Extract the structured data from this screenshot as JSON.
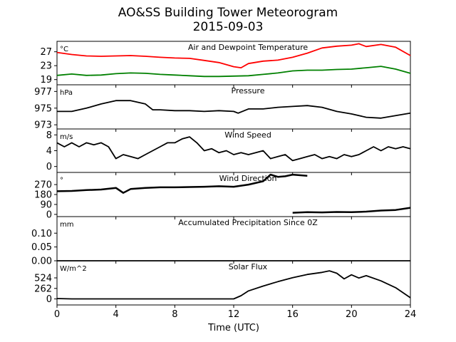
{
  "title_line1": "AO&SS Building Tower Meteorogram",
  "title_line2": "2015-09-03",
  "chart_data": {
    "type": "line",
    "x_label": "Time (UTC)",
    "x_range": [
      0,
      24
    ],
    "x_ticks": [
      0,
      4,
      8,
      12,
      16,
      20,
      24
    ],
    "panels": [
      {
        "title": "Air and Dewpoint Temperature",
        "unit": "°C",
        "ylim": [
          17.5,
          30
        ],
        "yticks": [
          19,
          23,
          27
        ],
        "series": [
          {
            "color": "#ff0000",
            "points": [
              [
                0,
                26.8
              ],
              [
                1,
                26.2
              ],
              [
                2,
                25.8
              ],
              [
                3,
                25.7
              ],
              [
                4,
                25.8
              ],
              [
                5,
                25.9
              ],
              [
                6,
                25.7
              ],
              [
                7,
                25.4
              ],
              [
                8,
                25.2
              ],
              [
                9,
                25.1
              ],
              [
                10,
                24.5
              ],
              [
                11,
                23.9
              ],
              [
                12,
                22.7
              ],
              [
                12.5,
                22.4
              ],
              [
                13,
                23.6
              ],
              [
                14,
                24.3
              ],
              [
                15,
                24.6
              ],
              [
                16,
                25.4
              ],
              [
                17,
                26.6
              ],
              [
                18,
                28.1
              ],
              [
                19,
                28.6
              ],
              [
                20,
                28.9
              ],
              [
                20.5,
                29.3
              ],
              [
                21,
                28.5
              ],
              [
                22,
                29.1
              ],
              [
                23,
                28.3
              ],
              [
                24,
                25.9
              ]
            ]
          },
          {
            "color": "#008000",
            "points": [
              [
                0,
                20.2
              ],
              [
                1,
                20.6
              ],
              [
                2,
                20.2
              ],
              [
                3,
                20.3
              ],
              [
                4,
                20.7
              ],
              [
                5,
                20.9
              ],
              [
                6,
                20.8
              ],
              [
                7,
                20.5
              ],
              [
                8,
                20.3
              ],
              [
                9,
                20.1
              ],
              [
                10,
                19.9
              ],
              [
                11,
                19.9
              ],
              [
                12,
                20.0
              ],
              [
                13,
                20.1
              ],
              [
                14,
                20.5
              ],
              [
                15,
                20.9
              ],
              [
                16,
                21.5
              ],
              [
                17,
                21.7
              ],
              [
                18,
                21.7
              ],
              [
                19,
                21.9
              ],
              [
                20,
                22.0
              ],
              [
                21,
                22.4
              ],
              [
                22,
                22.8
              ],
              [
                23,
                22.0
              ],
              [
                24,
                20.8
              ]
            ]
          }
        ]
      },
      {
        "title": "Pressure",
        "unit": "hPa",
        "ylim": [
          972.5,
          977.8
        ],
        "yticks": [
          973,
          975,
          977
        ],
        "series": [
          {
            "color": "#000000",
            "points": [
              [
                0,
                974.6
              ],
              [
                1,
                974.6
              ],
              [
                2,
                975.0
              ],
              [
                3,
                975.5
              ],
              [
                4,
                975.9
              ],
              [
                5,
                975.9
              ],
              [
                6,
                975.5
              ],
              [
                6.5,
                974.8
              ],
              [
                7,
                974.8
              ],
              [
                8,
                974.7
              ],
              [
                9,
                974.7
              ],
              [
                10,
                974.6
              ],
              [
                11,
                974.7
              ],
              [
                12,
                974.6
              ],
              [
                12.3,
                974.4
              ],
              [
                13,
                974.9
              ],
              [
                14,
                974.9
              ],
              [
                15,
                975.1
              ],
              [
                16,
                975.2
              ],
              [
                17,
                975.3
              ],
              [
                18,
                975.1
              ],
              [
                19,
                974.6
              ],
              [
                20,
                974.3
              ],
              [
                21,
                973.9
              ],
              [
                22,
                973.8
              ],
              [
                23,
                974.1
              ],
              [
                24,
                974.4
              ]
            ]
          }
        ]
      },
      {
        "title": "Wind Speed",
        "unit": "m/s",
        "ylim": [
          -1.5,
          9.5
        ],
        "yticks": [
          0,
          4,
          8
        ],
        "series": [
          {
            "color": "#000000",
            "points": [
              [
                0,
                6
              ],
              [
                0.5,
                5
              ],
              [
                1,
                6
              ],
              [
                1.5,
                5
              ],
              [
                2,
                6
              ],
              [
                2.5,
                5.5
              ],
              [
                3,
                6
              ],
              [
                3.5,
                5
              ],
              [
                4,
                2
              ],
              [
                4.5,
                3
              ],
              [
                5,
                2.5
              ],
              [
                5.5,
                2
              ],
              [
                6,
                3
              ],
              [
                6.5,
                4
              ],
              [
                7,
                5
              ],
              [
                7.5,
                6
              ],
              [
                8,
                6
              ],
              [
                8.5,
                7
              ],
              [
                9,
                7.5
              ],
              [
                9.5,
                6
              ],
              [
                10,
                4
              ],
              [
                10.5,
                4.5
              ],
              [
                11,
                3.5
              ],
              [
                11.5,
                4
              ],
              [
                12,
                3
              ],
              [
                12.5,
                3.5
              ],
              [
                13,
                3
              ],
              [
                13.5,
                3.5
              ],
              [
                14,
                4
              ],
              [
                14.5,
                2
              ],
              [
                15,
                2.5
              ],
              [
                15.5,
                3
              ],
              [
                16,
                1.5
              ],
              [
                16.5,
                2
              ],
              [
                17,
                2.5
              ],
              [
                17.5,
                3
              ],
              [
                18,
                2
              ],
              [
                18.5,
                2.5
              ],
              [
                19,
                2
              ],
              [
                19.5,
                3
              ],
              [
                20,
                2.5
              ],
              [
                20.5,
                3
              ],
              [
                21,
                4
              ],
              [
                21.5,
                5
              ],
              [
                22,
                4
              ],
              [
                22.5,
                5
              ],
              [
                23,
                4.5
              ],
              [
                23.5,
                5
              ],
              [
                24,
                4.5
              ]
            ]
          }
        ]
      },
      {
        "title": "Wind Direction",
        "unit": "°",
        "ylim": [
          -20,
          380
        ],
        "yticks": [
          0,
          90,
          180,
          270
        ],
        "series": [
          {
            "color": "#000000",
            "points": [
              [
                0,
                210
              ],
              [
                1,
                212
              ],
              [
                2,
                220
              ],
              [
                3,
                225
              ],
              [
                4,
                240
              ],
              [
                4.5,
                195
              ],
              [
                5,
                230
              ],
              [
                6,
                240
              ],
              [
                7,
                245
              ],
              [
                8,
                245
              ],
              [
                9,
                248
              ],
              [
                10,
                250
              ],
              [
                11,
                255
              ],
              [
                12,
                250
              ],
              [
                13,
                270
              ],
              [
                14,
                300
              ],
              [
                14.5,
                360
              ],
              [
                15,
                340
              ],
              [
                15.5,
                345
              ],
              [
                16,
                360
              ],
              [
                17,
                350
              ]
            ]
          },
          {
            "color": "#000000",
            "points": [
              [
                16,
                15
              ],
              [
                17,
                20
              ],
              [
                18,
                18
              ],
              [
                19,
                22
              ],
              [
                20,
                20
              ],
              [
                21,
                25
              ],
              [
                22,
                35
              ],
              [
                23,
                40
              ],
              [
                24,
                60
              ]
            ]
          }
        ]
      },
      {
        "title": "Accumulated Precipitation Since 0Z",
        "unit": "mm",
        "ylim": [
          0,
          0.16
        ],
        "yticks": [
          0.0,
          0.05,
          0.1
        ],
        "series": [
          {
            "color": "#000000",
            "points": [
              [
                0,
                0
              ],
              [
                24,
                0
              ]
            ]
          }
        ]
      },
      {
        "title": "Solar Flux",
        "unit": "W/m^2",
        "ylim": [
          -150,
          950
        ],
        "yticks": [
          0,
          262,
          524
        ],
        "series": [
          {
            "color": "#000000",
            "points": [
              [
                0,
                10
              ],
              [
                1,
                0
              ],
              [
                4,
                0
              ],
              [
                8,
                0
              ],
              [
                12,
                0
              ],
              [
                12.5,
                80
              ],
              [
                13,
                200
              ],
              [
                14,
                320
              ],
              [
                15,
                430
              ],
              [
                16,
                530
              ],
              [
                17,
                610
              ],
              [
                18,
                660
              ],
              [
                18.5,
                700
              ],
              [
                19,
                640
              ],
              [
                19.5,
                500
              ],
              [
                20,
                600
              ],
              [
                20.5,
                520
              ],
              [
                21,
                580
              ],
              [
                22,
                450
              ],
              [
                23,
                280
              ],
              [
                24,
                30
              ]
            ]
          }
        ]
      }
    ]
  }
}
